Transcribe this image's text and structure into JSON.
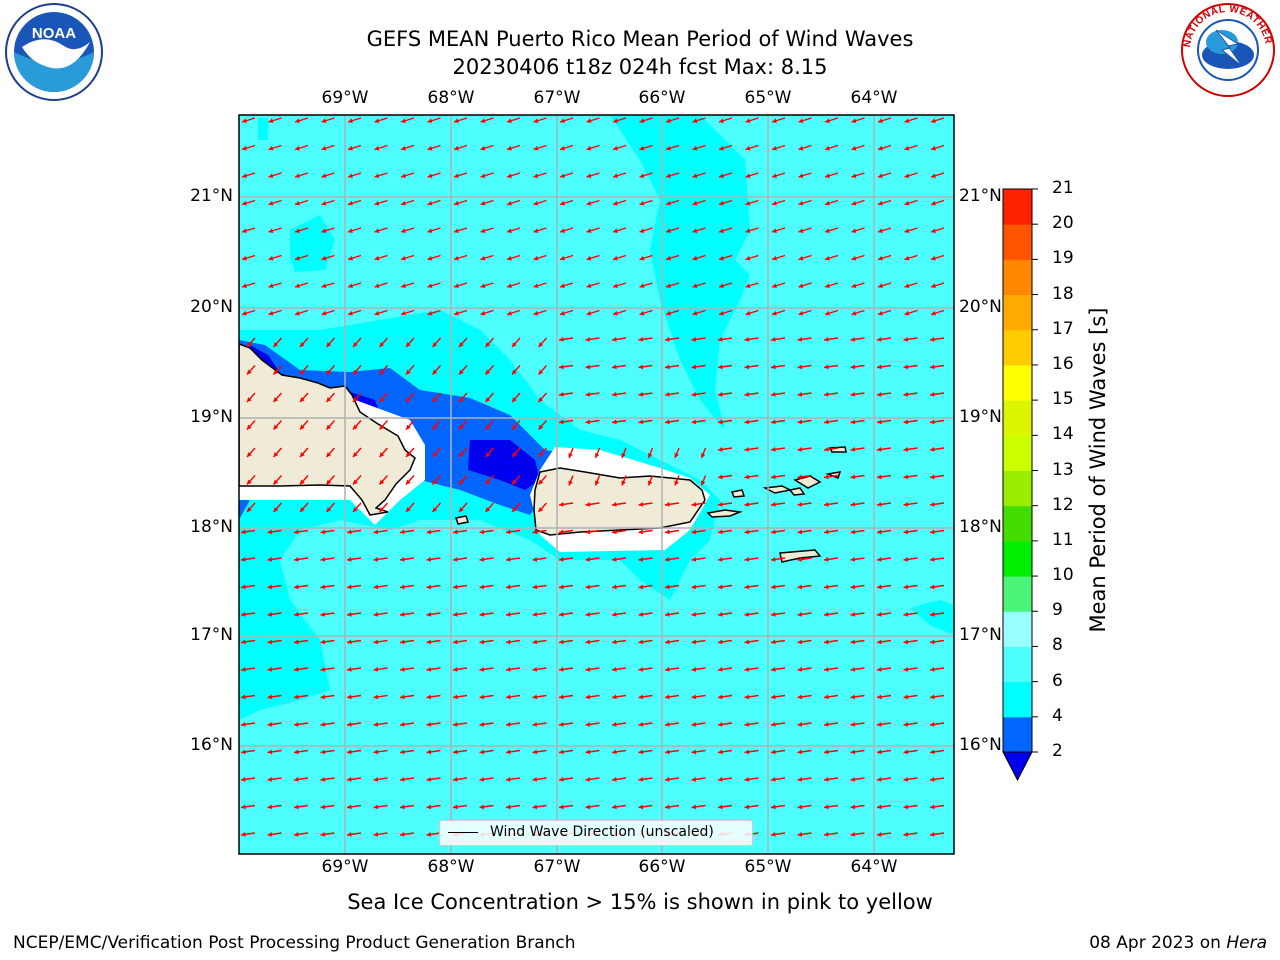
{
  "header": {
    "title_line1": "GEFS MEAN Puerto Rico Mean Period of Wind Waves",
    "title_line2": "20230406 t18z 024h fcst   Max: 8.15"
  },
  "map": {
    "lon_labels": [
      "69°W",
      "68°W",
      "67°W",
      "66°W",
      "65°W",
      "64°W"
    ],
    "lat_labels": [
      "21°N",
      "20°N",
      "19°N",
      "18°N",
      "17°N",
      "16°N"
    ],
    "legend_label": "Wind Wave Direction (unscaled)",
    "arrow_color": "#ff0000",
    "land_color": "#efebd7",
    "grid_color": "#b0b0b0"
  },
  "colorbar": {
    "label": "Mean Period of Wind Waves [s]",
    "ticks": [
      "2",
      "4",
      "6",
      "8",
      "9",
      "10",
      "11",
      "12",
      "13",
      "14",
      "15",
      "16",
      "17",
      "18",
      "19",
      "20",
      "21"
    ],
    "colors": [
      "#0000ee",
      "#0066ff",
      "#00ffff",
      "#4dffff",
      "#99ffff",
      "#4cf57a",
      "#00ee00",
      "#44dd00",
      "#99ee00",
      "#ccff00",
      "#dbf500",
      "#ffff00",
      "#ffcc00",
      "#ffaa00",
      "#ff8800",
      "#ff5500",
      "#ff2200",
      "#ee0000"
    ]
  },
  "footer": {
    "note": "Sea Ice Concentration > 15% is shown in pink to yellow",
    "left": "NCEP/EMC/Verification Post Processing Product Generation Branch",
    "right_prefix": "08 Apr 2023 on ",
    "right_host": "Hera"
  },
  "logos": {
    "noaa": "NOAA",
    "nws": "NATIONAL WEATHER SERVICE"
  }
}
